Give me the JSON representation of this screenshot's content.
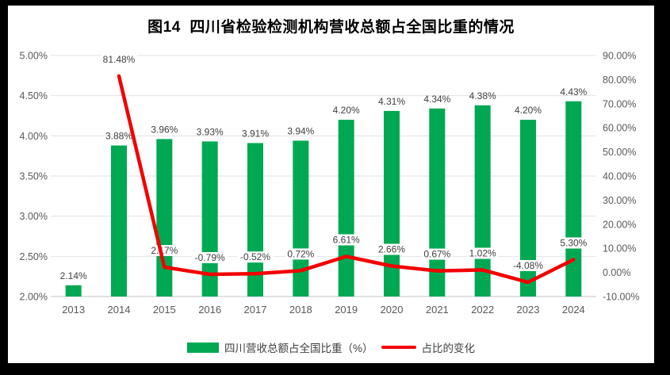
{
  "frame": {
    "background": "#000000",
    "panel_background": "#ffffff"
  },
  "title": "图14  四川省检验检测机构营收总额占全国比重的情况",
  "colors": {
    "bar": "#00a853",
    "line": "#f20000",
    "grid": "#e2e2e2",
    "axis_line": "#c6c6c6",
    "axis_text": "#595959",
    "data_label": "#404040",
    "title_text": "#000000"
  },
  "legend": [
    {
      "label": "四川营收总额占全国比重（%）",
      "marker": "bar"
    },
    {
      "label": "占比的变化",
      "marker": "line"
    }
  ],
  "chart_data": {
    "type": "combo-bar-line",
    "categories": [
      "2013",
      "2014",
      "2015",
      "2016",
      "2017",
      "2018",
      "2019",
      "2020",
      "2021",
      "2022",
      "2023",
      "2024"
    ],
    "series": [
      {
        "name": "四川营收总额占全国比重（%）",
        "type": "bar",
        "axis": "left",
        "values": [
          2.14,
          3.88,
          3.96,
          3.93,
          3.91,
          3.94,
          4.2,
          4.31,
          4.34,
          4.38,
          4.2,
          4.43
        ],
        "labels": [
          "2.14%",
          "3.88%",
          "3.96%",
          "3.93%",
          "3.91%",
          "3.94%",
          "4.20%",
          "4.31%",
          "4.34%",
          "4.38%",
          "4.20%",
          "4.43%"
        ]
      },
      {
        "name": "占比的变化",
        "type": "line",
        "axis": "right",
        "values": [
          null,
          81.48,
          2.17,
          -0.79,
          -0.52,
          0.72,
          6.61,
          2.66,
          0.67,
          1.02,
          -4.08,
          5.3
        ],
        "labels": [
          null,
          "81.48%",
          "2.17%",
          "-0.79%",
          "-0.52%",
          "0.72%",
          "6.61%",
          "2.66%",
          "0.67%",
          "1.02%",
          "-4.08%",
          "5.30%"
        ]
      }
    ],
    "left_axis": {
      "min": 2.0,
      "max": 5.0,
      "step": 0.5,
      "tick_labels": [
        "5.00%",
        "4.50%",
        "4.00%",
        "3.50%",
        "3.00%",
        "2.50%",
        "2.00%"
      ]
    },
    "right_axis": {
      "min": -10,
      "max": 90,
      "step": 10,
      "tick_labels": [
        "90.00%",
        "80.00%",
        "70.00%",
        "60.00%",
        "50.00%",
        "40.00%",
        "30.00%",
        "20.00%",
        "10.00%",
        "0.00%",
        "-10.00%"
      ]
    },
    "grid": true,
    "legend_position": "bottom"
  }
}
